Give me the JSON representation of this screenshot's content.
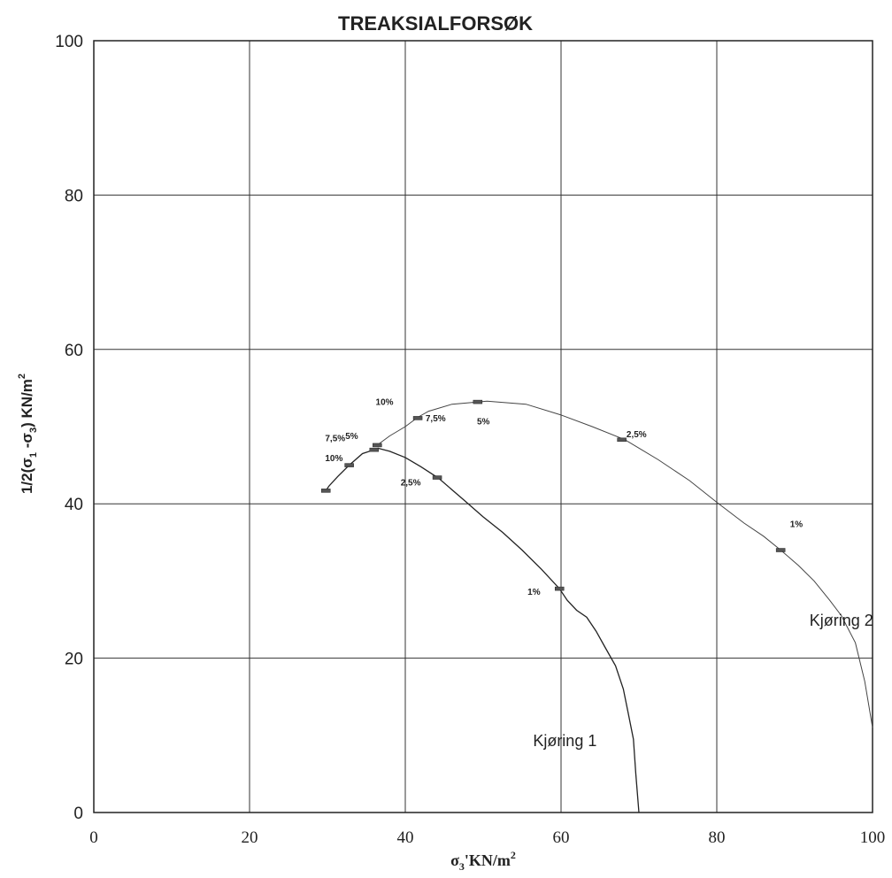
{
  "chart_data": {
    "type": "line",
    "title": "TREAKSIALFORSØK",
    "xlabel_base": "σ",
    "xlabel_sub": "3",
    "xlabel_rest": "'KN/m",
    "xlabel_sup": "2",
    "ylabel_pre": "1/2(σ",
    "ylabel_sub1": "1",
    "ylabel_mid": " -σ",
    "ylabel_sub2": "3",
    "ylabel_post": ")  KN/m",
    "ylabel_sup": "2",
    "xlim": [
      0,
      100
    ],
    "ylim": [
      0,
      100
    ],
    "xticks": [
      "0",
      "20",
      "40",
      "60",
      "80",
      "100"
    ],
    "yticks": [
      "0",
      "20",
      "40",
      "60",
      "80",
      "100"
    ],
    "grid": true,
    "series": [
      {
        "name": "Kjøring 1",
        "points": [
          [
            70.0,
            0.0
          ],
          [
            69.6,
            5.0
          ],
          [
            69.3,
            9.5
          ],
          [
            68.6,
            13.0
          ],
          [
            68.0,
            16.0
          ],
          [
            67.0,
            19.0
          ],
          [
            65.6,
            21.5
          ],
          [
            64.5,
            23.5
          ],
          [
            63.3,
            25.3
          ],
          [
            62.0,
            26.2
          ],
          [
            60.8,
            27.5
          ],
          [
            59.8,
            29.0
          ],
          [
            57.5,
            31.5
          ],
          [
            55.0,
            34.0
          ],
          [
            52.5,
            36.3
          ],
          [
            50.0,
            38.3
          ],
          [
            47.5,
            40.5
          ],
          [
            44.3,
            43.3
          ],
          [
            42.0,
            44.8
          ],
          [
            40.0,
            46.0
          ],
          [
            38.0,
            46.8
          ],
          [
            36.5,
            47.2
          ],
          [
            36.0,
            47.0
          ],
          [
            34.5,
            46.5
          ],
          [
            32.8,
            45.0
          ],
          [
            31.3,
            43.5
          ],
          [
            30.2,
            42.3
          ],
          [
            29.8,
            41.7
          ]
        ],
        "markers": [
          [
            59.8,
            29.0
          ],
          [
            44.1,
            43.4
          ],
          [
            36.0,
            47.0
          ],
          [
            32.8,
            45.0
          ],
          [
            29.8,
            41.7
          ]
        ],
        "annotations": [
          {
            "text": "1%",
            "x": 55.7,
            "y": 28.2
          },
          {
            "text": "2,5%",
            "x": 39.4,
            "y": 42.4
          },
          {
            "text": "5%",
            "x": 32.3,
            "y": 48.4
          },
          {
            "text": "10%",
            "x": 29.7,
            "y": 45.5
          }
        ]
      },
      {
        "name": "Kjøring 2",
        "points": [
          [
            100.0,
            11.0
          ],
          [
            99.0,
            17.0
          ],
          [
            97.8,
            22.0
          ],
          [
            96.0,
            25.5
          ],
          [
            94.5,
            27.5
          ],
          [
            92.5,
            30.0
          ],
          [
            90.5,
            32.0
          ],
          [
            88.2,
            34.0
          ],
          [
            86.0,
            35.8
          ],
          [
            83.5,
            37.5
          ],
          [
            80.0,
            40.2
          ],
          [
            76.5,
            43.0
          ],
          [
            72.5,
            45.7
          ],
          [
            68.2,
            48.3
          ],
          [
            64.0,
            50.0
          ],
          [
            60.0,
            51.5
          ],
          [
            55.5,
            52.9
          ],
          [
            50.5,
            53.3
          ],
          [
            46.0,
            52.9
          ],
          [
            43.0,
            52.0
          ],
          [
            41.6,
            51.2
          ],
          [
            40.0,
            50.0
          ],
          [
            38.0,
            48.8
          ],
          [
            36.4,
            47.6
          ]
        ],
        "markers": [
          [
            88.2,
            34.0
          ],
          [
            67.8,
            48.3
          ],
          [
            49.3,
            53.2
          ],
          [
            41.6,
            51.1
          ],
          [
            36.4,
            47.6
          ]
        ],
        "annotations": [
          {
            "text": "1%",
            "x": 89.4,
            "y": 37.0
          },
          {
            "text": "2,5%",
            "x": 68.4,
            "y": 48.6
          },
          {
            "text": "5%",
            "x": 49.2,
            "y": 50.3
          },
          {
            "text": "7,5%",
            "x": 42.6,
            "y": 50.7
          },
          {
            "text": "7,5%",
            "x": 29.7,
            "y": 48.1
          },
          {
            "text": "10%",
            "x": 36.2,
            "y": 52.8
          }
        ]
      }
    ],
    "series_labels": [
      {
        "text": "Kjøring 1",
        "x": 56.4,
        "y": 8.6
      },
      {
        "text": "Kjøring 2",
        "x": 91.9,
        "y": 24.2
      }
    ]
  }
}
